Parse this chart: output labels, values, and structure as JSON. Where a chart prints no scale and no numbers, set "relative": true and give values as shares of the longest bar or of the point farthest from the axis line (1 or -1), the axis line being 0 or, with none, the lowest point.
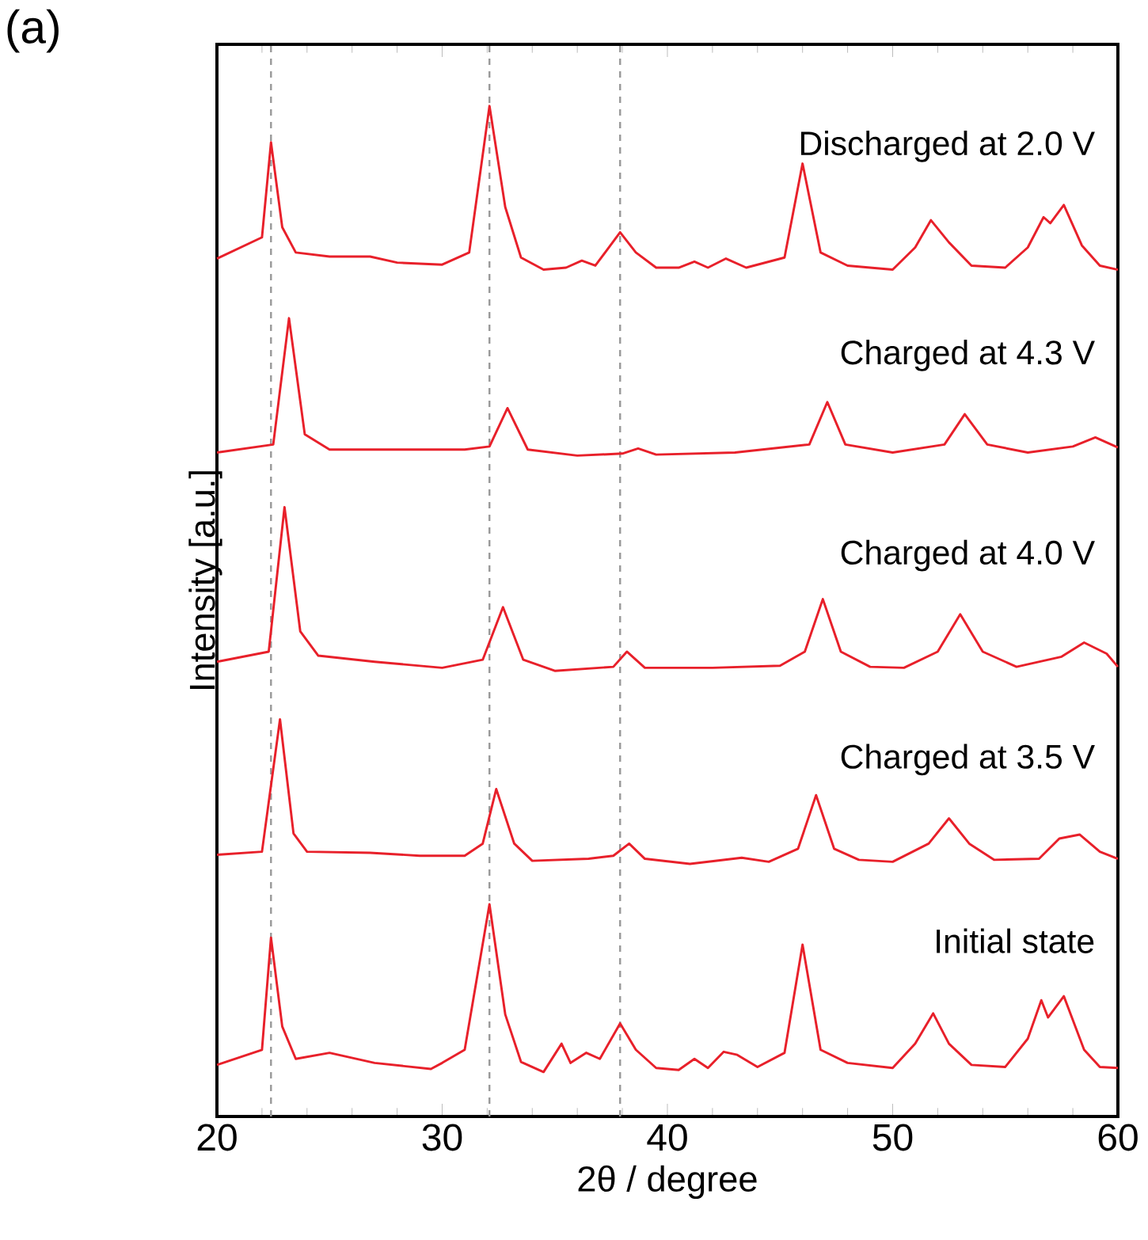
{
  "chart_data": {
    "type": "line",
    "title": "(a)",
    "xlabel": "2θ / degree",
    "ylabel": "Intensity [a.u.]",
    "relative": true,
    "tick_labels": "x",
    "xlim": [
      20,
      60
    ],
    "xticks": [
      20,
      30,
      40,
      50,
      60
    ],
    "ref_lines": [
      {
        "axis": "x",
        "value": 22.4,
        "color": "#999999",
        "line_style": "dashed"
      },
      {
        "axis": "x",
        "value": 32.1,
        "color": "#999999",
        "line_style": "dashed"
      },
      {
        "axis": "x",
        "value": 37.9,
        "color": "#999999",
        "line_style": "dashed"
      }
    ],
    "series": [
      {
        "name": "Initial state",
        "color": "#e8202a",
        "x": [
          20,
          22.0,
          22.4,
          22.9,
          23.5,
          25,
          27,
          29.5,
          30,
          31,
          32.1,
          32.8,
          33.5,
          34.5,
          35.3,
          35.7,
          36.4,
          37.0,
          37.9,
          38.6,
          39.5,
          40.5,
          41.2,
          41.8,
          42.5,
          43.1,
          44,
          45.2,
          46.0,
          46.8,
          48,
          50,
          51.0,
          51.8,
          52.5,
          53.5,
          55,
          56.0,
          56.6,
          56.9,
          57.6,
          58.5,
          59.2,
          60
        ],
        "values": [
          0.051,
          0.066,
          0.177,
          0.089,
          0.057,
          0.063,
          0.053,
          0.047,
          0.053,
          0.066,
          0.21,
          0.101,
          0.054,
          0.044,
          0.072,
          0.053,
          0.063,
          0.057,
          0.092,
          0.066,
          0.048,
          0.046,
          0.057,
          0.048,
          0.064,
          0.061,
          0.049,
          0.063,
          0.17,
          0.066,
          0.053,
          0.048,
          0.072,
          0.102,
          0.072,
          0.051,
          0.049,
          0.077,
          0.115,
          0.098,
          0.119,
          0.066,
          0.049,
          0.048
        ]
      },
      {
        "name": "Charged at 3.5 V",
        "color": "#e8202a",
        "x": [
          20,
          22.0,
          22.8,
          23.4,
          24,
          26.8,
          29,
          31,
          31.8,
          32.4,
          33.2,
          34,
          36.5,
          37.6,
          38.3,
          39,
          41,
          43.3,
          44.5,
          45.8,
          46.6,
          47.4,
          48.5,
          50,
          51.6,
          52.5,
          53.4,
          54.5,
          56.5,
          57.4,
          58.3,
          59.2,
          60
        ],
        "values": [
          0.259,
          0.262,
          0.393,
          0.28,
          0.262,
          0.261,
          0.258,
          0.258,
          0.27,
          0.324,
          0.27,
          0.253,
          0.255,
          0.258,
          0.27,
          0.255,
          0.25,
          0.256,
          0.252,
          0.265,
          0.318,
          0.265,
          0.254,
          0.252,
          0.27,
          0.295,
          0.27,
          0.254,
          0.255,
          0.275,
          0.279,
          0.262,
          0.255
        ]
      },
      {
        "name": "Charged at 4.0 V",
        "color": "#e8202a",
        "x": [
          20,
          22.3,
          23.0,
          23.7,
          24.5,
          27,
          30,
          31.8,
          32.7,
          33.6,
          35,
          37.6,
          38.2,
          39,
          42,
          45,
          46.1,
          46.9,
          47.7,
          49,
          50.5,
          52,
          53,
          54,
          55.5,
          57.5,
          58.5,
          59.5,
          60
        ],
        "values": [
          0.45,
          0.46,
          0.603,
          0.48,
          0.456,
          0.45,
          0.444,
          0.452,
          0.504,
          0.452,
          0.441,
          0.445,
          0.46,
          0.444,
          0.444,
          0.446,
          0.46,
          0.512,
          0.46,
          0.445,
          0.444,
          0.46,
          0.497,
          0.46,
          0.445,
          0.455,
          0.469,
          0.458,
          0.445
        ]
      },
      {
        "name": "Charged at 4.3 V",
        "color": "#e8202a",
        "x": [
          20,
          22.5,
          23.2,
          23.9,
          25,
          28,
          31,
          32.1,
          32.9,
          33.8,
          36,
          38,
          38.7,
          39.5,
          43,
          46.3,
          47.1,
          47.9,
          50,
          52.3,
          53.2,
          54.2,
          56,
          58,
          59,
          60
        ],
        "values": [
          0.657,
          0.665,
          0.79,
          0.675,
          0.66,
          0.66,
          0.66,
          0.663,
          0.701,
          0.66,
          0.654,
          0.656,
          0.661,
          0.655,
          0.657,
          0.665,
          0.707,
          0.665,
          0.657,
          0.665,
          0.695,
          0.665,
          0.657,
          0.663,
          0.672,
          0.662
        ]
      },
      {
        "name": "Discharged at 2.0 V",
        "color": "#e8202a",
        "x": [
          20,
          22.0,
          22.4,
          22.9,
          23.5,
          25,
          26.8,
          28,
          30,
          31.2,
          32.1,
          32.8,
          33.5,
          34.5,
          35.5,
          36.2,
          36.8,
          37.9,
          38.6,
          39.5,
          40.5,
          41.2,
          41.8,
          42.6,
          43.5,
          45.2,
          46.0,
          46.8,
          48,
          50,
          51.0,
          51.7,
          52.5,
          53.5,
          55,
          56.0,
          56.7,
          57.0,
          57.6,
          58.4,
          59.2,
          60
        ],
        "values": [
          0.849,
          0.87,
          0.964,
          0.88,
          0.855,
          0.851,
          0.851,
          0.845,
          0.843,
          0.855,
          1.0,
          0.9,
          0.85,
          0.838,
          0.84,
          0.847,
          0.842,
          0.875,
          0.855,
          0.84,
          0.84,
          0.846,
          0.84,
          0.849,
          0.84,
          0.85,
          0.943,
          0.855,
          0.842,
          0.838,
          0.86,
          0.887,
          0.865,
          0.842,
          0.84,
          0.86,
          0.89,
          0.884,
          0.902,
          0.862,
          0.842,
          0.838
        ]
      }
    ]
  }
}
